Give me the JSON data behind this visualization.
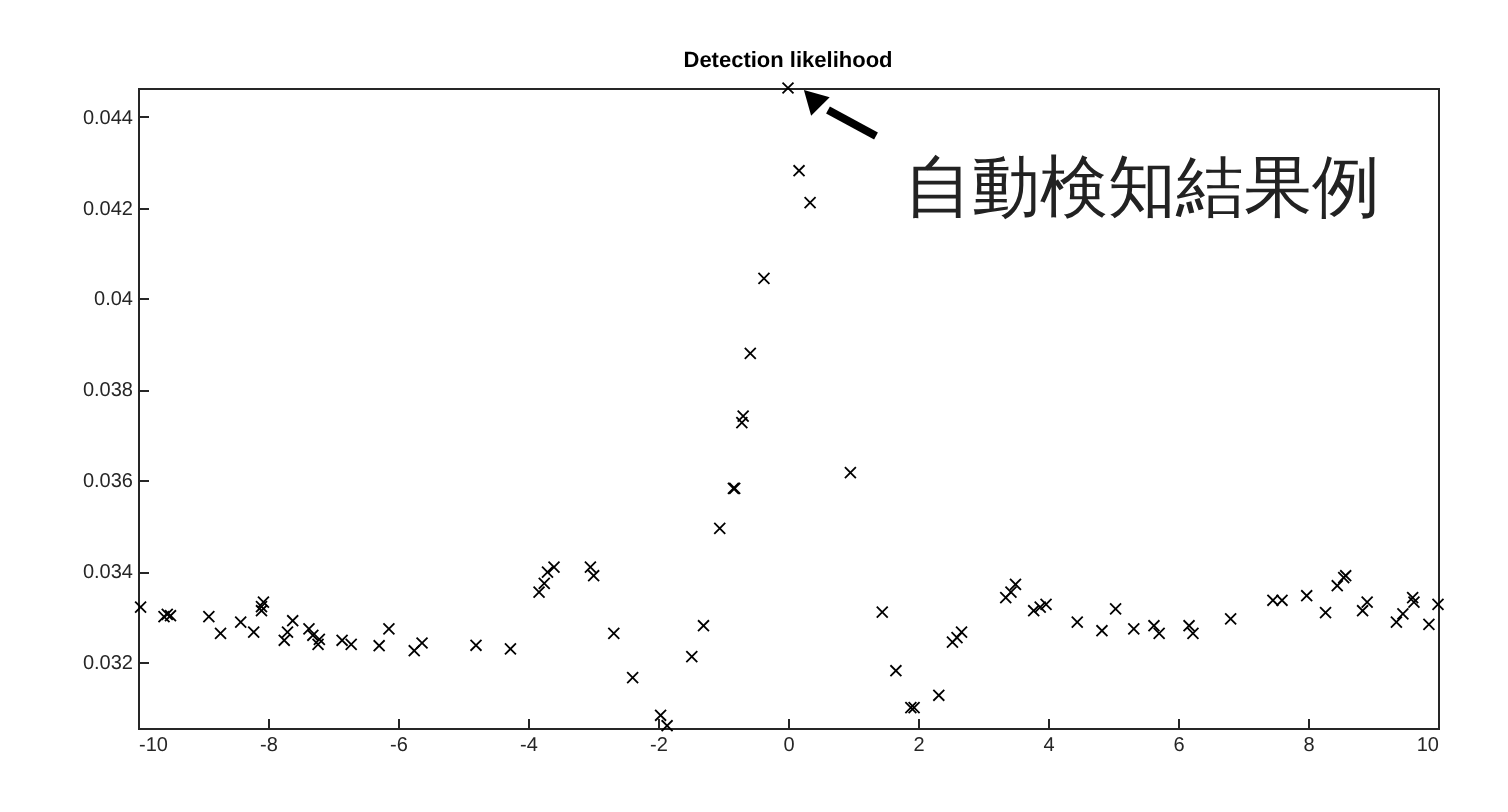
{
  "chart_data": {
    "type": "scatter",
    "title": "Detection likelihood",
    "x": [
      -9.96,
      -9.6,
      -9.55,
      -9.5,
      -8.91,
      -8.73,
      -8.42,
      -8.22,
      -8.1,
      -8.07,
      -8.1,
      -7.75,
      -7.7,
      -7.62,
      -7.37,
      -7.31,
      -7.23,
      -7.21,
      -6.86,
      -6.72,
      -6.29,
      -6.14,
      -5.75,
      -5.63,
      -4.8,
      -4.27,
      -3.83,
      -3.75,
      -3.7,
      -3.6,
      -3.04,
      -2.99,
      -2.68,
      -2.39,
      -1.96,
      -1.86,
      -1.48,
      -1.3,
      -1.05,
      -0.84,
      -0.82,
      -0.71,
      -0.69,
      -0.58,
      -0.37,
      0.0,
      0.17,
      0.34,
      0.96,
      1.45,
      1.66,
      1.89,
      1.94,
      2.32,
      2.53,
      2.6,
      2.67,
      3.35,
      3.43,
      3.5,
      3.78,
      3.88,
      3.97,
      4.45,
      4.83,
      5.04,
      5.32,
      5.63,
      5.71,
      6.17,
      6.23,
      6.81,
      7.46,
      7.6,
      7.98,
      8.27,
      8.45,
      8.55,
      8.58,
      8.84,
      8.91,
      9.36,
      9.46,
      9.61,
      9.63,
      9.86,
      10.0
    ],
    "values": [
      0.03321,
      0.033,
      0.03305,
      0.03302,
      0.033,
      0.03263,
      0.03288,
      0.03266,
      0.03313,
      0.03332,
      0.03322,
      0.03248,
      0.03266,
      0.03291,
      0.03273,
      0.03259,
      0.03239,
      0.0325,
      0.03248,
      0.03239,
      0.03236,
      0.03273,
      0.03225,
      0.03242,
      0.03237,
      0.03229,
      0.03354,
      0.03373,
      0.03398,
      0.03409,
      0.03409,
      0.0339,
      0.03263,
      0.03166,
      0.03083,
      0.0306,
      0.03212,
      0.0328,
      0.03494,
      0.03582,
      0.03582,
      0.03727,
      0.03741,
      0.03879,
      0.04044,
      0.04463,
      0.04281,
      0.04211,
      0.03617,
      0.0331,
      0.03181,
      0.031,
      0.031,
      0.03127,
      0.03244,
      0.03254,
      0.03266,
      0.03342,
      0.03354,
      0.03371,
      0.03313,
      0.03321,
      0.03327,
      0.03288,
      0.03269,
      0.03317,
      0.03273,
      0.0328,
      0.03263,
      0.0328,
      0.03263,
      0.03295,
      0.03336,
      0.03336,
      0.03346,
      0.03309,
      0.03368,
      0.03386,
      0.0339,
      0.03313,
      0.03332,
      0.03288,
      0.03306,
      0.03342,
      0.03332,
      0.03283,
      0.03327
    ],
    "color": "#000000",
    "marker": "cross",
    "xlim": [
      -10,
      10
    ],
    "xticks": [
      -10,
      -8,
      -6,
      -4,
      -2,
      0,
      2,
      4,
      6,
      8,
      10
    ],
    "ylim": [
      0.03055,
      0.04463
    ],
    "yticks": [
      0.032,
      0.034,
      0.036,
      0.038,
      0.04,
      0.042,
      0.044
    ],
    "grid": false,
    "annotations": [
      {
        "text": "自動検知結果例",
        "x": 0,
        "y": 0.04463
      }
    ]
  }
}
